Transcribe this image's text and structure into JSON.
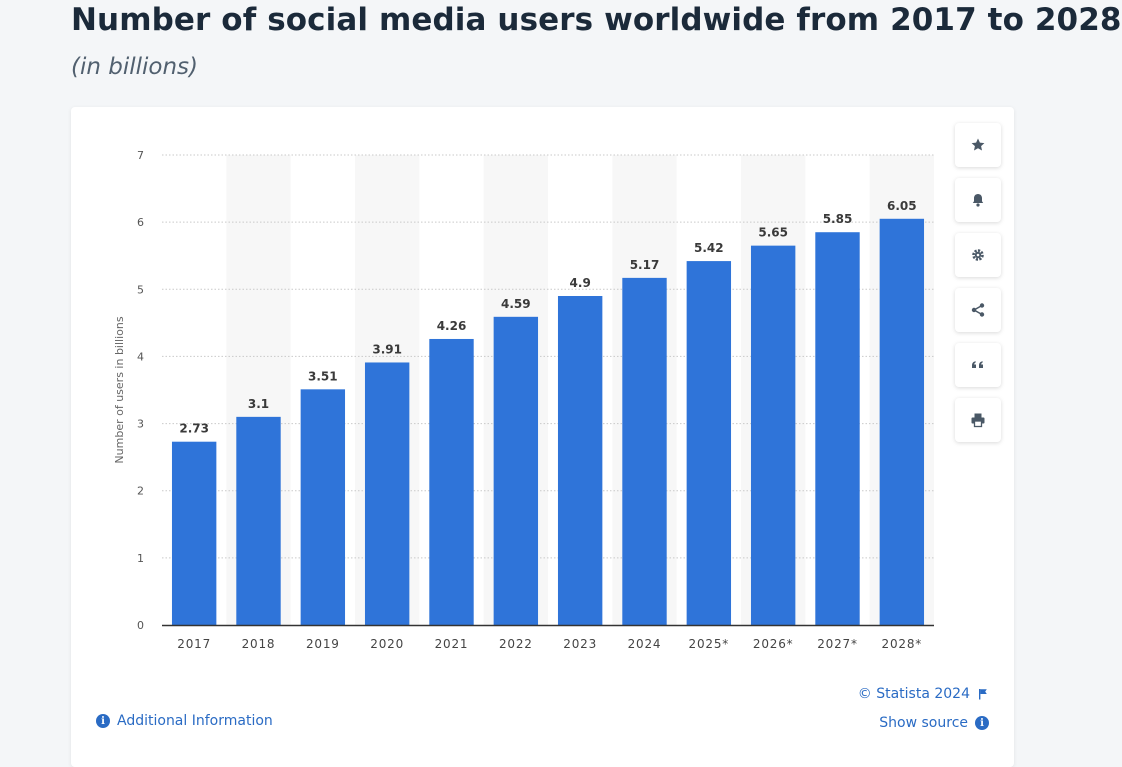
{
  "header": {
    "title": "Number of social media users worldwide from 2017 to 2028",
    "subtitle": "(in billions)"
  },
  "toolbar": {
    "buttons": [
      {
        "name": "favorite",
        "icon": "star-icon"
      },
      {
        "name": "notification",
        "icon": "bell-icon"
      },
      {
        "name": "settings",
        "icon": "gear-icon"
      },
      {
        "name": "share",
        "icon": "share-icon"
      },
      {
        "name": "cite",
        "icon": "quote-icon"
      },
      {
        "name": "print",
        "icon": "print-icon"
      }
    ]
  },
  "footer": {
    "additional_info": "Additional Information",
    "copyright": "© Statista 2024",
    "show_source": "Show source"
  },
  "colors": {
    "bar": "#2f74d9",
    "accent": "#2a6bc4",
    "title": "#1b2a3a",
    "column_band": "#f7f7f7"
  },
  "chart_data": {
    "type": "bar",
    "ylabel": "Number of users in billions",
    "xlabel": "",
    "categories": [
      "2017",
      "2018",
      "2019",
      "2020",
      "2021",
      "2022",
      "2023",
      "2024",
      "2025*",
      "2026*",
      "2027*",
      "2028*"
    ],
    "values": [
      2.73,
      3.1,
      3.51,
      3.91,
      4.26,
      4.59,
      4.9,
      5.17,
      5.42,
      5.65,
      5.85,
      6.05
    ],
    "value_labels": [
      "2.73",
      "3.1",
      "3.51",
      "3.91",
      "4.26",
      "4.59",
      "4.9",
      "5.17",
      "5.42",
      "5.65",
      "5.85",
      "6.05"
    ],
    "ylim": [
      0,
      7
    ],
    "yticks": [
      "0",
      "1",
      "2",
      "3",
      "4",
      "5",
      "6",
      "7"
    ],
    "grid": true,
    "alternating_column_bands": true
  }
}
